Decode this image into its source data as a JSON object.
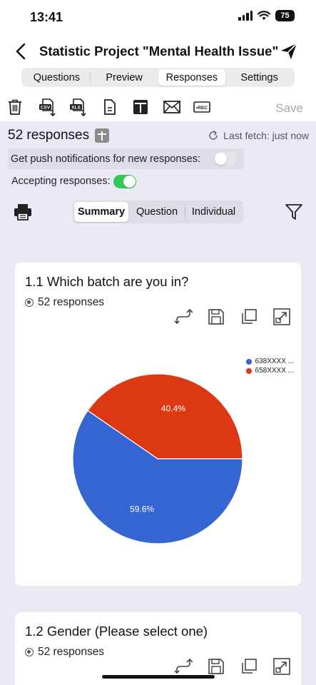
{
  "status": {
    "time": "13:41",
    "battery": "75"
  },
  "header": {
    "title": "Statistic Project \"Mental Health Issue\""
  },
  "tabs": [
    {
      "label": "Questions",
      "active": false
    },
    {
      "label": "Preview",
      "active": false
    },
    {
      "label": "Responses",
      "active": true
    },
    {
      "label": "Settings",
      "active": false
    }
  ],
  "toolbar": {
    "icons": [
      "trash-icon",
      "export-csv-icon",
      "export-xls-icon",
      "document-icon",
      "table-add-icon",
      "mail-icon",
      "record-icon"
    ],
    "csv_label": "CSV",
    "xls_label": "XLS",
    "rec_label": "•REC",
    "save_label": "Save"
  },
  "responses": {
    "count_label": "52 responses",
    "last_fetch": "Last fetch: just now",
    "push_label": "Get push notifications for new responses:",
    "push_enabled": false,
    "accepting_label": "Accepting responses:",
    "accepting_enabled": true
  },
  "view_tabs": [
    {
      "label": "Summary",
      "active": true
    },
    {
      "label": "Question",
      "active": false
    },
    {
      "label": "Individual",
      "active": false
    }
  ],
  "questions": [
    {
      "title": "1.1  Which batch are you in?",
      "responses": "52 responses",
      "chart_data": {
        "type": "pie",
        "categories": [
          "638XXXX ...",
          "658XXXX ..."
        ],
        "values": [
          59.6,
          40.4
        ],
        "value_labels": [
          "59.6%",
          "40.4%"
        ],
        "colors": [
          "#3465d0",
          "#dc3912"
        ],
        "legend": "top-right"
      }
    },
    {
      "title": "1.2  Gender (Please select one)",
      "responses": "52 responses"
    }
  ],
  "colors": {
    "accent_green": "#34c759",
    "toggle_off": "#e6e6ea",
    "background": "#ece9f5"
  }
}
